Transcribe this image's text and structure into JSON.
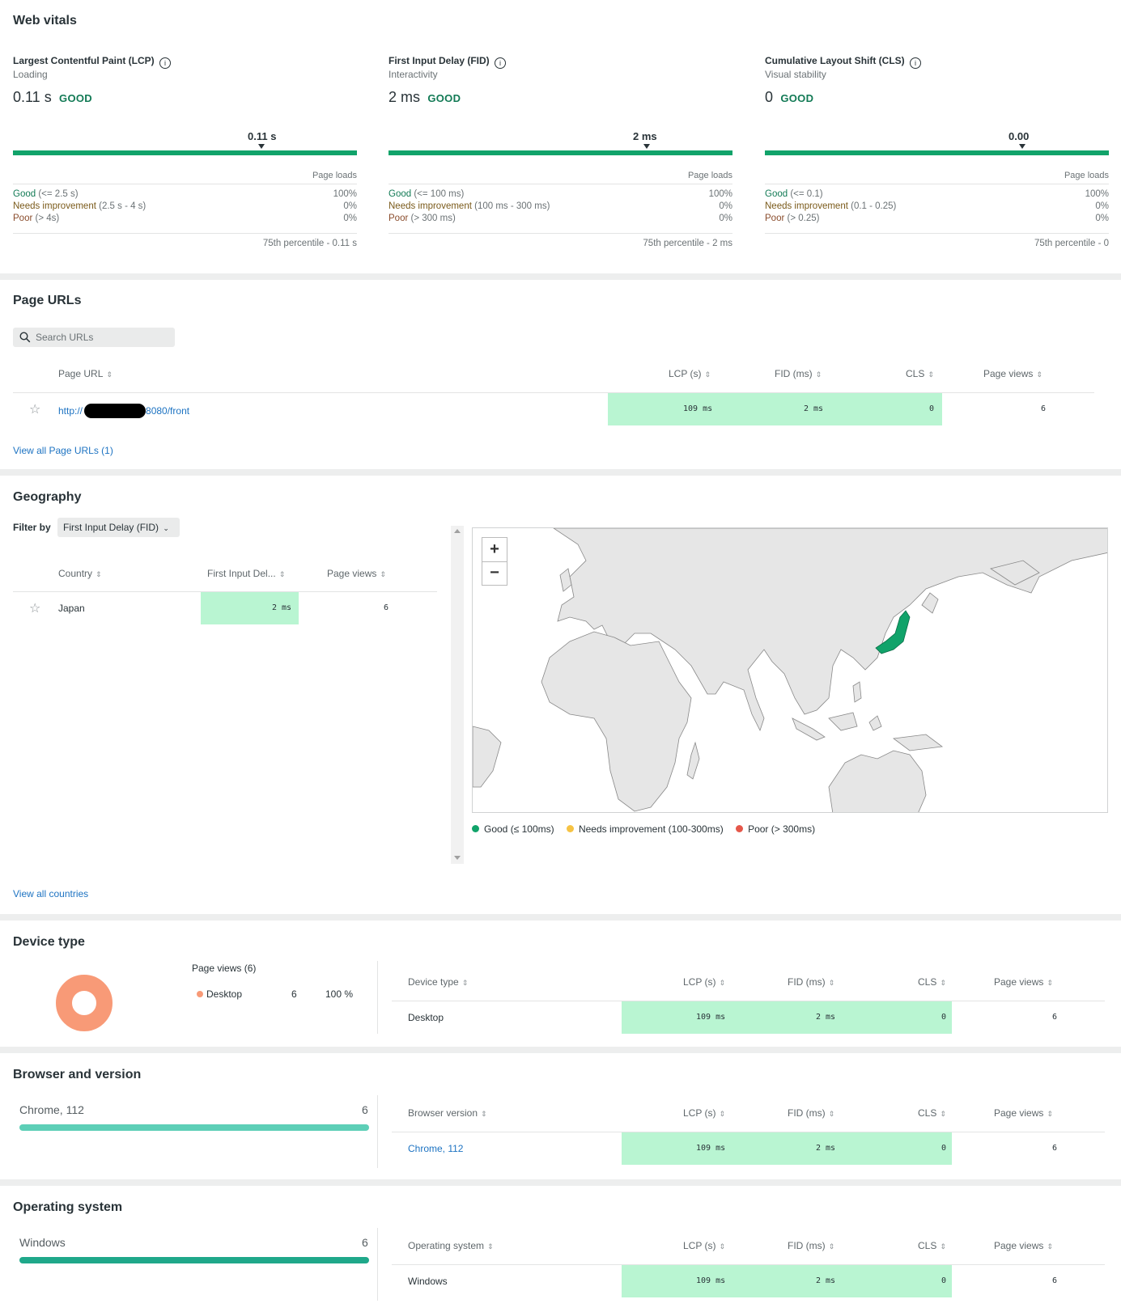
{
  "colors": {
    "good": "#11a36a",
    "needs": "#f6c344",
    "poor": "#e5574a",
    "cell_green": "#b9f5d2",
    "bar_teal": "#5dcfb7",
    "donut": "#f89a77"
  },
  "web_vitals": {
    "title": "Web vitals",
    "metrics": [
      {
        "name": "Largest Contentful Paint (LCP)",
        "subtitle": "Loading",
        "value": "0.11 s",
        "status": "GOOD",
        "marker": "0.11 s",
        "page_loads_label": "Page loads",
        "rows": [
          {
            "label": "Good",
            "range": "(<= 2.5 s)",
            "pct": "100%"
          },
          {
            "label": "Needs improvement",
            "range": "(2.5 s - 4 s)",
            "pct": "0%"
          },
          {
            "label": "Poor",
            "range": "(> 4s)",
            "pct": "0%"
          }
        ],
        "percentile": "75th percentile - 0.11 s"
      },
      {
        "name": "First Input Delay (FID)",
        "subtitle": "Interactivity",
        "value": "2 ms",
        "status": "GOOD",
        "marker": "2 ms",
        "page_loads_label": "Page loads",
        "rows": [
          {
            "label": "Good",
            "range": "(<= 100 ms)",
            "pct": "100%"
          },
          {
            "label": "Needs improvement",
            "range": "(100 ms - 300 ms)",
            "pct": "0%"
          },
          {
            "label": "Poor",
            "range": "(> 300 ms)",
            "pct": "0%"
          }
        ],
        "percentile": "75th percentile - 2 ms"
      },
      {
        "name": "Cumulative Layout Shift (CLS)",
        "subtitle": "Visual stability",
        "value": "0",
        "status": "GOOD",
        "marker": "0.00",
        "page_loads_label": "Page loads",
        "rows": [
          {
            "label": "Good",
            "range": "(<= 0.1)",
            "pct": "100%"
          },
          {
            "label": "Needs improvement",
            "range": "(0.1 - 0.25)",
            "pct": "0%"
          },
          {
            "label": "Poor",
            "range": "(> 0.25)",
            "pct": "0%"
          }
        ],
        "percentile": "75th percentile - 0"
      }
    ]
  },
  "page_urls": {
    "title": "Page URLs",
    "search_placeholder": "Search URLs",
    "headers": {
      "url": "Page URL",
      "lcp": "LCP (s)",
      "fid": "FID (ms)",
      "cls": "CLS",
      "views": "Page views"
    },
    "row": {
      "url_prefix": "http://",
      "url_suffix": "8080/front",
      "lcp": "109 ms",
      "fid": "2 ms",
      "cls": "0",
      "views": "6"
    },
    "view_all": "View all Page URLs (1)"
  },
  "geography": {
    "title": "Geography",
    "filter_label": "Filter by",
    "filter_value": "First Input Delay (FID)",
    "headers": {
      "country": "Country",
      "fid": "First Input Del...",
      "views": "Page views"
    },
    "row": {
      "country": "Japan",
      "fid": "2 ms",
      "views": "6"
    },
    "zoom_in": "+",
    "zoom_out": "−",
    "legend": [
      {
        "label": "Good (≤ 100ms)",
        "color": "#11a36a"
      },
      {
        "label": "Needs improvement (100-300ms)",
        "color": "#f6c344"
      },
      {
        "label": "Poor (> 300ms)",
        "color": "#e5574a"
      }
    ],
    "view_all": "View all countries"
  },
  "device_type": {
    "title": "Device type",
    "donut_heading": "Page views (6)",
    "donut_item": {
      "label": "Desktop",
      "count": "6",
      "pct": "100 %"
    },
    "headers": {
      "dim": "Device type",
      "lcp": "LCP (s)",
      "fid": "FID (ms)",
      "cls": "CLS",
      "views": "Page views"
    },
    "row": {
      "dim": "Desktop",
      "lcp": "109 ms",
      "fid": "2 ms",
      "cls": "0",
      "views": "6"
    }
  },
  "browser": {
    "title": "Browser and version",
    "bar": {
      "label": "Chrome, 112",
      "count": "6",
      "fraction": 1.0
    },
    "headers": {
      "dim": "Browser version",
      "lcp": "LCP (s)",
      "fid": "FID (ms)",
      "cls": "CLS",
      "views": "Page views"
    },
    "row": {
      "dim": "Chrome, 112",
      "lcp": "109 ms",
      "fid": "2 ms",
      "cls": "0",
      "views": "6"
    }
  },
  "os": {
    "title": "Operating system",
    "bar": {
      "label": "Windows",
      "count": "6",
      "fraction": 1.0
    },
    "headers": {
      "dim": "Operating system",
      "lcp": "LCP (s)",
      "fid": "FID (ms)",
      "cls": "CLS",
      "views": "Page views"
    },
    "row": {
      "dim": "Windows",
      "lcp": "109 ms",
      "fid": "2 ms",
      "cls": "0",
      "views": "6"
    }
  }
}
